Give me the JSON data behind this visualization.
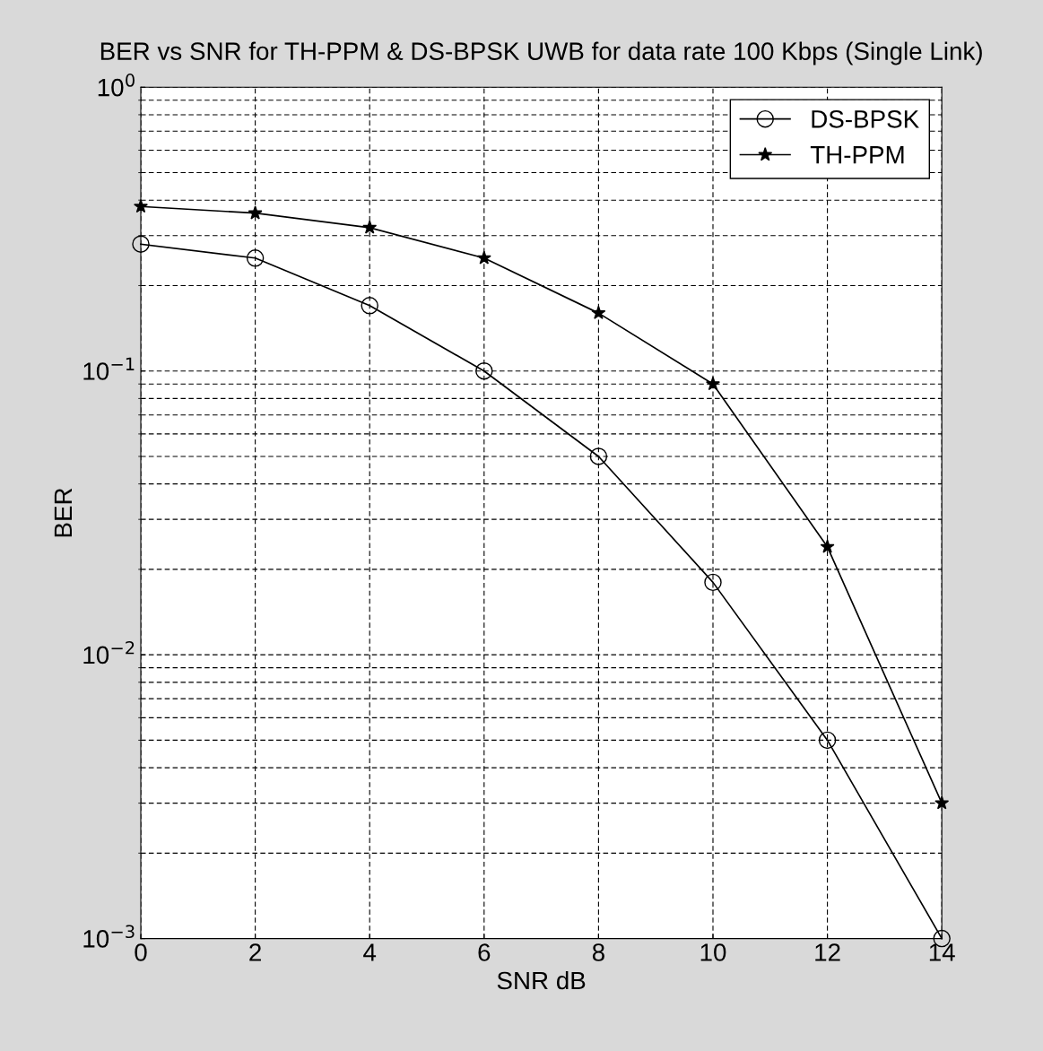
{
  "chart_data": {
    "type": "line",
    "title": "BER vs SNR for TH-PPM & DS-BPSK UWB for data rate 100 Kbps (Single Link)",
    "xlabel": "SNR dB",
    "ylabel": "BER",
    "x": [
      0,
      2,
      4,
      6,
      8,
      10,
      12,
      14
    ],
    "series": [
      {
        "name": "DS-BPSK",
        "color": "#000000",
        "marker": "circle",
        "values": [
          0.28,
          0.25,
          0.17,
          0.1,
          0.05,
          0.018,
          0.005,
          0.001
        ]
      },
      {
        "name": "TH-PPM",
        "color": "#000000",
        "marker": "star",
        "values": [
          0.38,
          0.36,
          0.32,
          0.25,
          0.16,
          0.09,
          0.024,
          0.003
        ]
      }
    ],
    "log": "y",
    "xlim": [
      0,
      14
    ],
    "xticks": [
      0,
      2,
      4,
      6,
      8,
      10,
      12,
      14
    ],
    "ylim": [
      0.001,
      1
    ],
    "yticks": [
      {
        "value": 0.001,
        "label": "10$^{−3}$"
      },
      {
        "value": 0.01,
        "label": "10$^{−2}$"
      },
      {
        "value": 0.1,
        "label": "10$^{−1}$"
      },
      {
        "value": 1,
        "label": "10$^{0}$"
      }
    ],
    "grid": true,
    "legend": "top right",
    "line_style": "solid"
  }
}
